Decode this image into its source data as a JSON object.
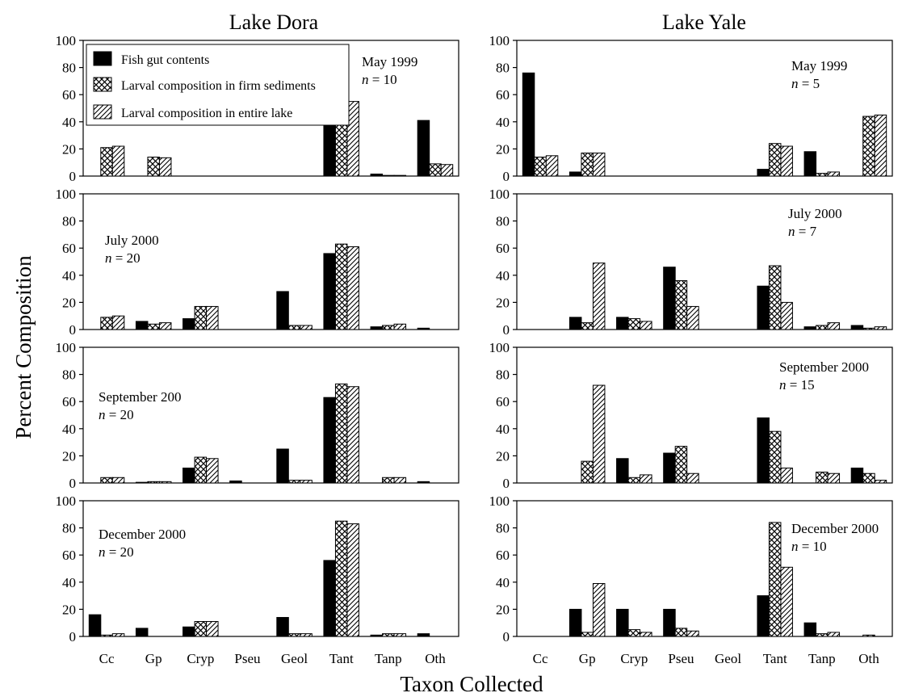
{
  "figure": {
    "column_titles": [
      "Lake Dora",
      "Lake Yale"
    ],
    "ylabel": "Percent Composition",
    "xlabel": "Taxon Collected",
    "legend": [
      {
        "label": "Fish gut contents",
        "pattern": "solid"
      },
      {
        "label": "Larval composition in firm sediments",
        "pattern": "crosshatch"
      },
      {
        "label": "Larval composition in entire lake",
        "pattern": "diagonal"
      }
    ]
  },
  "chart_data": [
    {
      "type": "bar",
      "lake": "Lake Dora",
      "date": "May 1999",
      "n": "10",
      "categories": [
        "Cc",
        "Gp",
        "Cryp",
        "Pseu",
        "Geol",
        "Tant",
        "Tanp",
        "Oth"
      ],
      "ylim": [
        0,
        100
      ],
      "yticks": [
        0,
        20,
        40,
        60,
        80,
        100
      ],
      "series": [
        {
          "values": [
            0,
            0,
            0,
            0,
            0,
            57,
            1.5,
            41
          ]
        },
        {
          "values": [
            21,
            14,
            0,
            0,
            0,
            55,
            0.5,
            9
          ]
        },
        {
          "values": [
            22,
            13.5,
            0,
            0,
            0,
            55,
            0.5,
            8.5
          ]
        }
      ]
    },
    {
      "type": "bar",
      "lake": "Lake Yale",
      "date": "May 1999",
      "n": "5",
      "categories": [
        "Cc",
        "Gp",
        "Cryp",
        "Pseu",
        "Geol",
        "Tant",
        "Tanp",
        "Oth"
      ],
      "ylim": [
        0,
        100
      ],
      "yticks": [
        0,
        20,
        40,
        60,
        80,
        100
      ],
      "series": [
        {
          "values": [
            76,
            3,
            0,
            0,
            0,
            5,
            18,
            0
          ]
        },
        {
          "values": [
            14,
            17,
            0,
            0,
            0,
            24,
            2,
            44
          ]
        },
        {
          "values": [
            15,
            17,
            0,
            0,
            0,
            22,
            3,
            45
          ]
        }
      ]
    },
    {
      "type": "bar",
      "lake": "Lake Dora",
      "date": "July 2000",
      "n": "20",
      "categories": [
        "Cc",
        "Gp",
        "Cryp",
        "Pseu",
        "Geol",
        "Tant",
        "Tanp",
        "Oth"
      ],
      "ylim": [
        0,
        100
      ],
      "yticks": [
        0,
        20,
        40,
        60,
        80,
        100
      ],
      "series": [
        {
          "values": [
            0,
            6,
            8,
            0,
            28,
            56,
            2,
            1
          ]
        },
        {
          "values": [
            9,
            4,
            17,
            0,
            3,
            63,
            3,
            0
          ]
        },
        {
          "values": [
            10,
            5,
            17,
            0,
            3,
            61,
            4,
            0
          ]
        }
      ]
    },
    {
      "type": "bar",
      "lake": "Lake Yale",
      "date": "July 2000",
      "n": "7",
      "categories": [
        "Cc",
        "Gp",
        "Cryp",
        "Pseu",
        "Geol",
        "Tant",
        "Tanp",
        "Oth"
      ],
      "ylim": [
        0,
        100
      ],
      "yticks": [
        0,
        20,
        40,
        60,
        80,
        100
      ],
      "series": [
        {
          "values": [
            0,
            9,
            9,
            46,
            0,
            32,
            2,
            3
          ]
        },
        {
          "values": [
            0,
            5,
            8,
            36,
            0,
            47,
            3,
            1
          ]
        },
        {
          "values": [
            0,
            49,
            6,
            17,
            0,
            20,
            5,
            2
          ]
        }
      ]
    },
    {
      "type": "bar",
      "lake": "Lake Dora",
      "date": "September 200",
      "n": "20",
      "categories": [
        "Cc",
        "Gp",
        "Cryp",
        "Pseu",
        "Geol",
        "Tant",
        "Tanp",
        "Oth"
      ],
      "ylim": [
        0,
        100
      ],
      "yticks": [
        0,
        20,
        40,
        60,
        80,
        100
      ],
      "series": [
        {
          "values": [
            0,
            0.5,
            11,
            1.5,
            25,
            63,
            0,
            1
          ]
        },
        {
          "values": [
            4,
            1,
            19,
            0,
            2,
            73,
            4,
            0
          ]
        },
        {
          "values": [
            4,
            1,
            18,
            0,
            2,
            71,
            4,
            0
          ]
        }
      ]
    },
    {
      "type": "bar",
      "lake": "Lake Yale",
      "date": "September 2000",
      "n": "15",
      "categories": [
        "Cc",
        "Gp",
        "Cryp",
        "Pseu",
        "Geol",
        "Tant",
        "Tanp",
        "Oth"
      ],
      "ylim": [
        0,
        100
      ],
      "yticks": [
        0,
        20,
        40,
        60,
        80,
        100
      ],
      "series": [
        {
          "values": [
            0,
            0,
            18,
            22,
            0,
            48,
            0,
            11
          ]
        },
        {
          "values": [
            0,
            16,
            4,
            27,
            0,
            38,
            8,
            7
          ]
        },
        {
          "values": [
            0,
            72,
            6,
            7,
            0,
            11,
            7,
            2
          ]
        }
      ]
    },
    {
      "type": "bar",
      "lake": "Lake Dora",
      "date": "December 2000",
      "n": "20",
      "categories": [
        "Cc",
        "Gp",
        "Cryp",
        "Pseu",
        "Geol",
        "Tant",
        "Tanp",
        "Oth"
      ],
      "ylim": [
        0,
        100
      ],
      "yticks": [
        0,
        20,
        40,
        60,
        80,
        100
      ],
      "series": [
        {
          "values": [
            16,
            6,
            7,
            0,
            14,
            56,
            1,
            2
          ]
        },
        {
          "values": [
            1,
            0,
            11,
            0,
            2,
            85,
            2,
            0
          ]
        },
        {
          "values": [
            2,
            0,
            11,
            0,
            2,
            83,
            2,
            0
          ]
        }
      ]
    },
    {
      "type": "bar",
      "lake": "Lake Yale",
      "date": "December 2000",
      "n": "10",
      "categories": [
        "Cc",
        "Gp",
        "Cryp",
        "Pseu",
        "Geol",
        "Tant",
        "Tanp",
        "Oth"
      ],
      "ylim": [
        0,
        100
      ],
      "yticks": [
        0,
        20,
        40,
        60,
        80,
        100
      ],
      "series": [
        {
          "values": [
            0,
            20,
            20,
            20,
            0,
            30,
            10,
            0
          ]
        },
        {
          "values": [
            0,
            3,
            5,
            6,
            0,
            84,
            2,
            1
          ]
        },
        {
          "values": [
            0,
            39,
            3,
            4,
            0,
            51,
            3,
            0
          ]
        }
      ]
    }
  ]
}
